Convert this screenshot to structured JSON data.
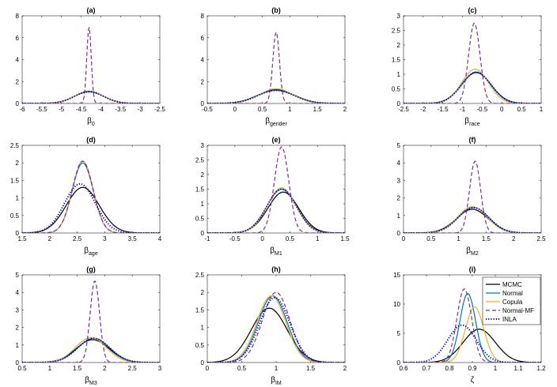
{
  "series_styles": [
    {
      "name": "MCMC",
      "color": "#000000",
      "dash": "",
      "width": 1.2
    },
    {
      "name": "Normal",
      "color": "#0072BD",
      "dash": "",
      "width": 1.2
    },
    {
      "name": "Copula",
      "color": "#EDB120",
      "dash": "",
      "width": 1.2
    },
    {
      "name": "Normal-MF",
      "color": "#7E2F8E",
      "dash": "5,3",
      "width": 1.2
    },
    {
      "name": "INLA",
      "color": "#0000CC",
      "dash": "1.2,2",
      "width": 2.0
    }
  ],
  "chart_data": [
    {
      "type": "line",
      "title": "(a)",
      "xlabel_main": "β",
      "xlabel_sub": "0",
      "xlim": [
        -6,
        -2.5
      ],
      "ylim": [
        0,
        8
      ],
      "xticks": [
        -6,
        -5.5,
        -5,
        -4.5,
        -4,
        -3.5,
        -3,
        -2.5
      ],
      "xticklabels": [
        "-6",
        "-5.5",
        "-5",
        "-4.5",
        "-4",
        "-3.5",
        "-3",
        "-2.5"
      ],
      "yticks": [
        0,
        2,
        4,
        6,
        8
      ],
      "yticklabels": [
        "0",
        "2",
        "4",
        "6",
        "8"
      ],
      "series": [
        {
          "name": "MCMC",
          "mu": -4.3,
          "sd": 0.36,
          "amp": 1.1
        },
        {
          "name": "Normal",
          "mu": -4.3,
          "sd": 0.38,
          "amp": 1.05
        },
        {
          "name": "Copula",
          "mu": -4.3,
          "sd": 0.35,
          "amp": 1.15
        },
        {
          "name": "Normal-MF",
          "mu": -4.3,
          "sd": 0.057,
          "amp": 7.0
        },
        {
          "name": "INLA",
          "mu": -4.3,
          "sd": 0.37,
          "amp": 1.08
        }
      ]
    },
    {
      "type": "line",
      "title": "(b)",
      "xlabel_main": "β",
      "xlabel_sub": "gender",
      "xlim": [
        -0.5,
        2
      ],
      "ylim": [
        0,
        8
      ],
      "xticks": [
        -0.5,
        0,
        0.5,
        1,
        1.5,
        2
      ],
      "xticklabels": [
        "-0.5",
        "0",
        "0.5",
        "1",
        "1.5",
        "2"
      ],
      "yticks": [
        0,
        2,
        4,
        6,
        8
      ],
      "yticklabels": [
        "0",
        "2",
        "4",
        "6",
        "8"
      ],
      "series": [
        {
          "name": "MCMC",
          "mu": 0.75,
          "sd": 0.33,
          "amp": 1.25
        },
        {
          "name": "Normal",
          "mu": 0.75,
          "sd": 0.33,
          "amp": 1.2
        },
        {
          "name": "Copula",
          "mu": 0.75,
          "sd": 0.3,
          "amp": 1.35
        },
        {
          "name": "Normal-MF",
          "mu": 0.75,
          "sd": 0.06,
          "amp": 6.5
        },
        {
          "name": "INLA",
          "mu": 0.75,
          "sd": 0.33,
          "amp": 1.2
        }
      ]
    },
    {
      "type": "line",
      "title": "(c)",
      "xlabel_main": "β",
      "xlabel_sub": "race",
      "xlim": [
        -2.5,
        1
      ],
      "ylim": [
        0,
        3
      ],
      "xticks": [
        -2.5,
        -2,
        -1.5,
        -1,
        -0.5,
        0,
        0.5,
        1
      ],
      "xticklabels": [
        "-2.5",
        "-2",
        "-1.5",
        "-1",
        "-0.5",
        "0",
        "0.5",
        "1"
      ],
      "yticks": [
        0,
        0.5,
        1,
        1.5,
        2,
        2.5,
        3
      ],
      "yticklabels": [
        "0",
        "0.5",
        "1",
        "1.5",
        "2",
        "2.5",
        "3"
      ],
      "series": [
        {
          "name": "MCMC",
          "mu": -0.65,
          "sd": 0.37,
          "amp": 1.07
        },
        {
          "name": "Normal",
          "mu": -0.65,
          "sd": 0.38,
          "amp": 1.05
        },
        {
          "name": "Copula",
          "mu": -0.68,
          "sd": 0.34,
          "amp": 1.17
        },
        {
          "name": "Normal-MF",
          "mu": -0.7,
          "sd": 0.145,
          "amp": 2.75
        },
        {
          "name": "INLA",
          "mu": -0.65,
          "sd": 0.37,
          "amp": 1.07
        }
      ]
    },
    {
      "type": "line",
      "title": "(d)",
      "xlabel_main": "β",
      "xlabel_sub": "age",
      "xlim": [
        1.5,
        4
      ],
      "ylim": [
        0,
        2.5
      ],
      "xticks": [
        1.5,
        2,
        2.5,
        3,
        3.5,
        4
      ],
      "xticklabels": [
        "1.5",
        "2",
        "2.5",
        "3",
        "3.5",
        "4"
      ],
      "yticks": [
        0,
        0.5,
        1,
        1.5,
        2,
        2.5
      ],
      "yticklabels": [
        "0",
        "0.5",
        "1",
        "1.5",
        "2",
        "2.5"
      ],
      "series": [
        {
          "name": "MCMC",
          "mu": 2.6,
          "sd": 0.3,
          "amp": 1.3
        },
        {
          "name": "Normal",
          "mu": 2.6,
          "sd": 0.19,
          "amp": 2.0
        },
        {
          "name": "Copula",
          "mu": 2.6,
          "sd": 0.19,
          "amp": 2.05
        },
        {
          "name": "Normal-MF",
          "mu": 2.6,
          "sd": 0.19,
          "amp": 2.05
        },
        {
          "name": "INLA",
          "mu": 2.55,
          "sd": 0.28,
          "amp": 1.4
        }
      ]
    },
    {
      "type": "line",
      "title": "(e)",
      "xlabel_main": "β",
      "xlabel_sub": "M1",
      "xlim": [
        -1,
        1.5
      ],
      "ylim": [
        0,
        3
      ],
      "xticks": [
        -1,
        -0.5,
        0,
        0.5,
        1,
        1.5
      ],
      "xticklabels": [
        "-1",
        "-0.5",
        "0",
        "0.5",
        "1",
        "1.5"
      ],
      "yticks": [
        0,
        0.5,
        1,
        1.5,
        2,
        2.5,
        3
      ],
      "yticklabels": [
        "0",
        "0.5",
        "1",
        "1.5",
        "2",
        "2.5",
        "3"
      ],
      "series": [
        {
          "name": "MCMC",
          "mu": 0.38,
          "sd": 0.28,
          "amp": 1.4
        },
        {
          "name": "Normal",
          "mu": 0.35,
          "sd": 0.27,
          "amp": 1.5
        },
        {
          "name": "Copula",
          "mu": 0.35,
          "sd": 0.26,
          "amp": 1.55
        },
        {
          "name": "Normal-MF",
          "mu": 0.35,
          "sd": 0.13,
          "amp": 2.95
        },
        {
          "name": "INLA",
          "mu": 0.35,
          "sd": 0.27,
          "amp": 1.5
        }
      ]
    },
    {
      "type": "line",
      "title": "(f)",
      "xlabel_main": "β",
      "xlabel_sub": "M2",
      "xlim": [
        0,
        2.5
      ],
      "ylim": [
        0,
        5
      ],
      "xticks": [
        0,
        0.5,
        1,
        1.5,
        2,
        2.5
      ],
      "xticklabels": [
        "0",
        "0.5",
        "1",
        "1.5",
        "2",
        "2.5"
      ],
      "yticks": [
        0,
        1,
        2,
        3,
        4,
        5
      ],
      "yticklabels": [
        "0",
        "1",
        "2",
        "3",
        "4",
        "5"
      ],
      "series": [
        {
          "name": "MCMC",
          "mu": 1.25,
          "sd": 0.29,
          "amp": 1.35
        },
        {
          "name": "Normal",
          "mu": 1.27,
          "sd": 0.28,
          "amp": 1.45
        },
        {
          "name": "Copula",
          "mu": 1.25,
          "sd": 0.27,
          "amp": 1.5
        },
        {
          "name": "Normal-MF",
          "mu": 1.3,
          "sd": 0.1,
          "amp": 4.1
        },
        {
          "name": "INLA",
          "mu": 1.27,
          "sd": 0.28,
          "amp": 1.45
        }
      ]
    },
    {
      "type": "line",
      "title": "(g)",
      "xlabel_main": "β",
      "xlabel_sub": "M3",
      "xlim": [
        0.5,
        3
      ],
      "ylim": [
        0,
        5
      ],
      "xticks": [
        0.5,
        1,
        1.5,
        2,
        2.5,
        3
      ],
      "xticklabels": [
        "0.5",
        "1",
        "1.5",
        "2",
        "2.5",
        "3"
      ],
      "yticks": [
        0,
        1,
        2,
        3,
        4,
        5
      ],
      "yticklabels": [
        "0",
        "1",
        "2",
        "3",
        "4",
        "5"
      ],
      "series": [
        {
          "name": "MCMC",
          "mu": 1.78,
          "sd": 0.3,
          "amp": 1.3
        },
        {
          "name": "Normal",
          "mu": 1.8,
          "sd": 0.29,
          "amp": 1.38
        },
        {
          "name": "Copula",
          "mu": 1.75,
          "sd": 0.28,
          "amp": 1.42
        },
        {
          "name": "Normal-MF",
          "mu": 1.82,
          "sd": 0.085,
          "amp": 4.65
        },
        {
          "name": "INLA",
          "mu": 1.8,
          "sd": 0.29,
          "amp": 1.38
        }
      ]
    },
    {
      "type": "line",
      "title": "(h)",
      "xlabel_main": "β",
      "xlabel_sub": "IM",
      "xlim": [
        0,
        2
      ],
      "ylim": [
        0,
        2.5
      ],
      "xticks": [
        0,
        0.5,
        1,
        1.5,
        2
      ],
      "xticklabels": [
        "0",
        "0.5",
        "1",
        "1.5",
        "2"
      ],
      "yticks": [
        0,
        0.5,
        1,
        1.5,
        2,
        2.5
      ],
      "yticklabels": [
        "0",
        "0.5",
        "1",
        "1.5",
        "2",
        "2.5"
      ],
      "series": [
        {
          "name": "MCMC",
          "mu": 0.9,
          "sd": 0.26,
          "amp": 1.55
        },
        {
          "name": "Normal",
          "mu": 0.95,
          "sd": 0.21,
          "amp": 1.9
        },
        {
          "name": "Copula",
          "mu": 0.93,
          "sd": 0.21,
          "amp": 1.9
        },
        {
          "name": "Normal-MF",
          "mu": 1.0,
          "sd": 0.2,
          "amp": 2.0
        },
        {
          "name": "INLA",
          "mu": 0.98,
          "sd": 0.22,
          "amp": 1.85
        }
      ]
    },
    {
      "type": "line",
      "title": "(i)",
      "xlabel_main": "ζ",
      "xlabel_sub": "",
      "xlim": [
        0.6,
        1.2
      ],
      "ylim": [
        0,
        15
      ],
      "xticks": [
        0.6,
        0.7,
        0.8,
        0.9,
        1,
        1.1,
        1.2
      ],
      "xticklabels": [
        "0.6",
        "0.7",
        "0.8",
        "0.9",
        "1",
        "1.1",
        "1.2"
      ],
      "yticks": [
        0,
        5,
        10,
        15
      ],
      "yticklabels": [
        "0",
        "5",
        "10",
        "15"
      ],
      "series": [
        {
          "name": "MCMC",
          "mu": 0.93,
          "sd": 0.07,
          "amp": 5.7
        },
        {
          "name": "Normal",
          "mu": 0.88,
          "sd": 0.034,
          "amp": 11.8
        },
        {
          "name": "Copula",
          "mu": 0.91,
          "sd": 0.04,
          "amp": 9.5
        },
        {
          "name": "Normal-MF",
          "mu": 0.865,
          "sd": 0.032,
          "amp": 12.6
        },
        {
          "name": "INLA",
          "mu": 0.855,
          "sd": 0.062,
          "amp": 6.4
        }
      ]
    }
  ],
  "legend": {
    "items": [
      "MCMC",
      "Normal",
      "Copula",
      "Normal-MF",
      "INLA"
    ]
  }
}
